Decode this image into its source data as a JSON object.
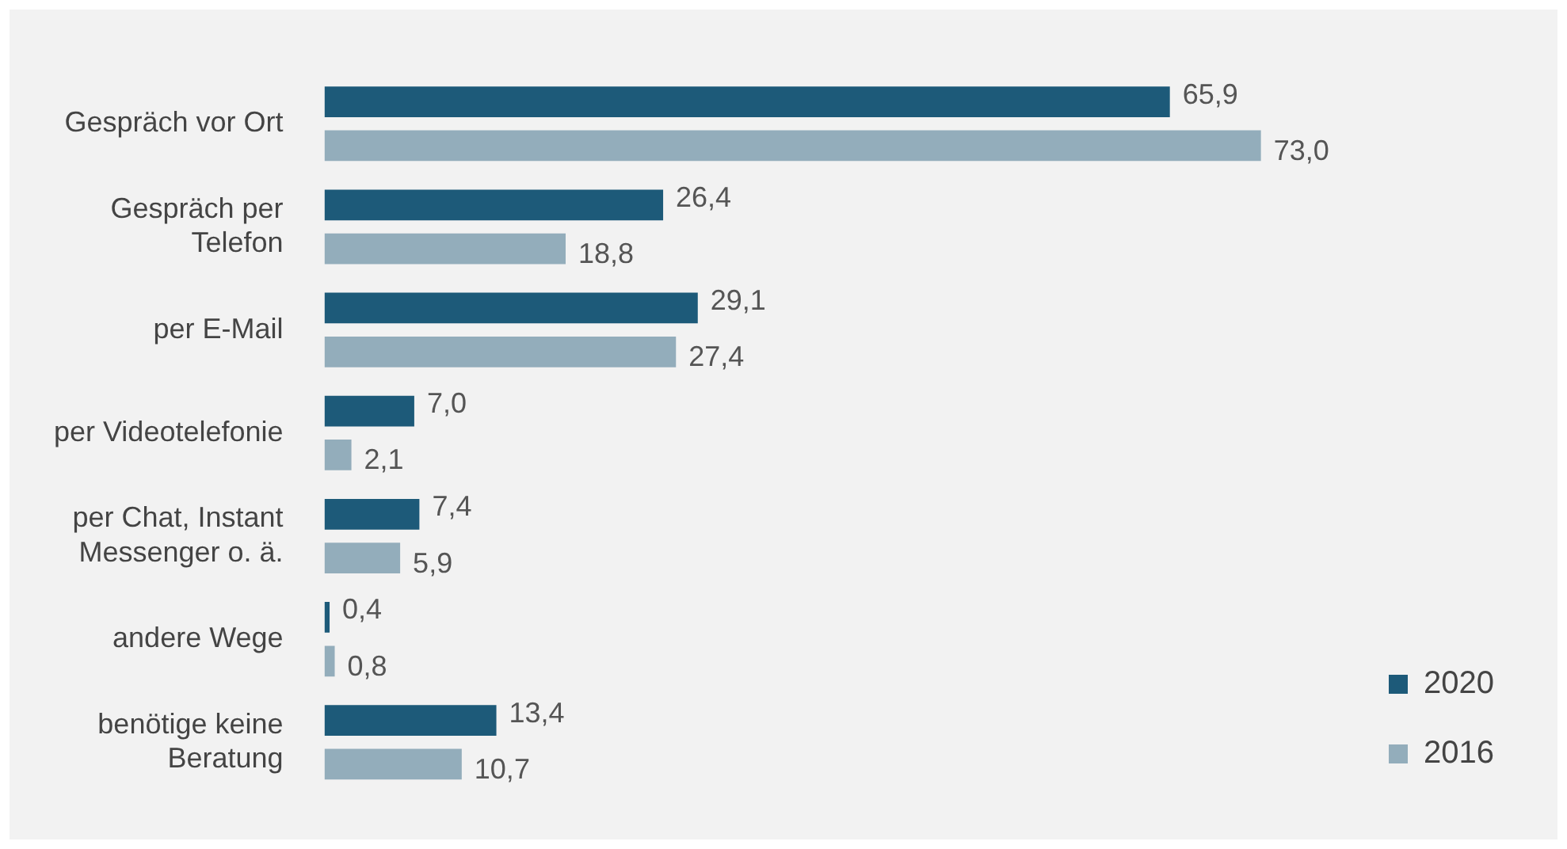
{
  "chart_data": {
    "type": "bar",
    "orientation": "horizontal",
    "categories": [
      "Gespräch vor Ort",
      "Gespräch per Telefon",
      "per E-Mail",
      "per Videotelefonie",
      "per Chat, Instant Messenger o. ä.",
      "andere Wege",
      "benötige keine Beratung"
    ],
    "series": [
      {
        "name": "2020",
        "color": "#1d5a79",
        "values": [
          65.9,
          26.4,
          29.1,
          7.0,
          7.4,
          0.4,
          13.4
        ],
        "value_labels": [
          "65,9",
          "26,4",
          "29,1",
          "7,0",
          "7,4",
          "0,4",
          "13,4"
        ]
      },
      {
        "name": "2016",
        "color": "#93adbb",
        "values": [
          73.0,
          18.8,
          27.4,
          2.1,
          5.9,
          0.8,
          10.7
        ],
        "value_labels": [
          "73,0",
          "18,8",
          "27,4",
          "2,1",
          "5,9",
          "0,8",
          "10,7"
        ]
      }
    ],
    "legend": "right"
  }
}
